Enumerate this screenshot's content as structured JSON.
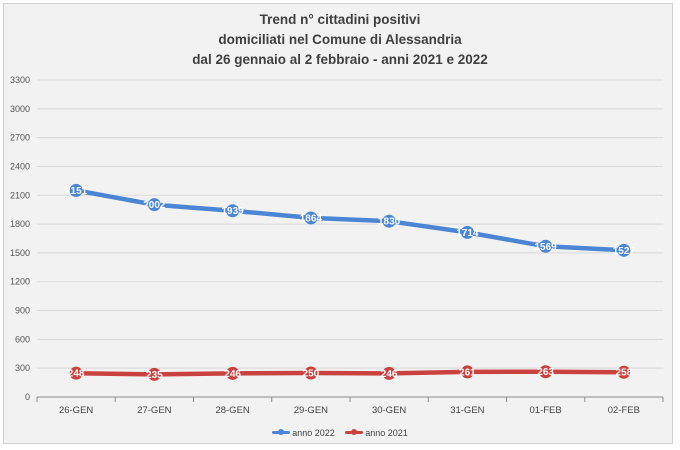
{
  "chart_data": {
    "type": "line",
    "title_lines": [
      "Trend n° cittadini positivi",
      "domiciliati nel Comune di Alessandria",
      "dal 26 gennaio al 2 febbraio - anni 2021 e 2022"
    ],
    "categories": [
      "26-GEN",
      "27-GEN",
      "28-GEN",
      "29-GEN",
      "30-GEN",
      "31-GEN",
      "01-FEB",
      "02-FEB"
    ],
    "ylim": [
      0,
      3300
    ],
    "yticks": [
      "0",
      "300",
      "600",
      "900",
      "1200",
      "1500",
      "1800",
      "2100",
      "2400",
      "2700",
      "3000",
      "3300"
    ],
    "grid": true,
    "legend_position": "bottom",
    "series": [
      {
        "name": "anno 2022",
        "color": "#4a86d4",
        "values": [
          2151,
          2002,
          1939,
          1864,
          1830,
          1714,
          1569,
          1527
        ],
        "labels": [
          "2151",
          "2002",
          "1939",
          "1864",
          "1830",
          "1714",
          "1569",
          "1527"
        ]
      },
      {
        "name": "anno 2021",
        "color": "#c9423f",
        "values": [
          248,
          235,
          246,
          250,
          246,
          261,
          263,
          258
        ],
        "labels": [
          "248",
          "235",
          "246",
          "250",
          "246",
          "261",
          "263",
          "258"
        ]
      }
    ]
  }
}
